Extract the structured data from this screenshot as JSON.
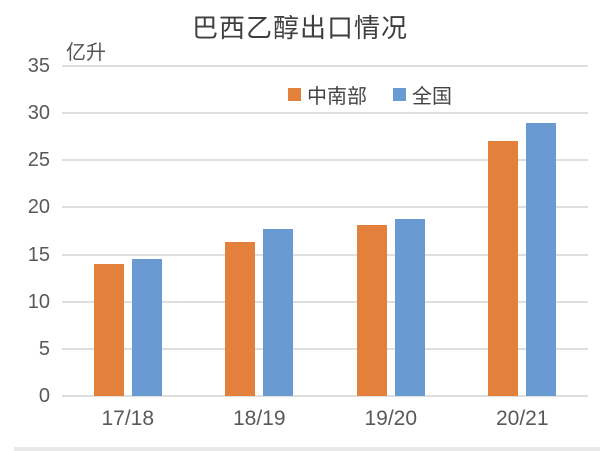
{
  "chart_data": {
    "type": "bar",
    "title": "巴西乙醇出口情况",
    "unit": "亿升",
    "categories": [
      "17/18",
      "18/19",
      "19/20",
      "20/21"
    ],
    "series": [
      {
        "name": "中南部",
        "color": "#E2803C",
        "values": [
          14.0,
          16.3,
          18.1,
          27.0
        ]
      },
      {
        "name": "全国",
        "color": "#699BD2",
        "values": [
          14.5,
          17.7,
          18.8,
          29.0
        ]
      }
    ],
    "ylim": [
      0,
      35
    ],
    "yticks": [
      0,
      5,
      10,
      15,
      20,
      25,
      30,
      35
    ],
    "grid": true,
    "legend_position": "top-center",
    "xlabel": "",
    "ylabel": "亿升"
  },
  "colors": {
    "gridline": "#D9D9D9",
    "axis_text": "#595959",
    "title_text": "#3F3F3F",
    "background": "#FFFFFF"
  }
}
